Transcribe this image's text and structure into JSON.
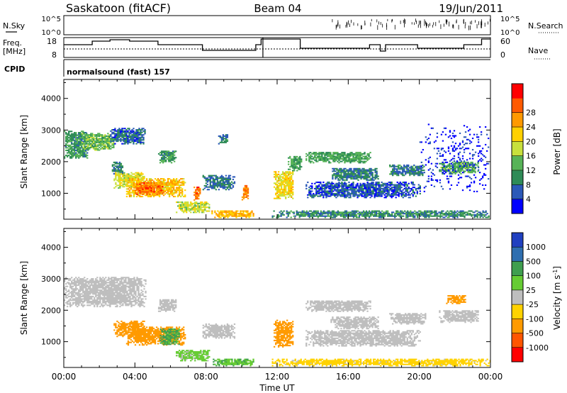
{
  "header": {
    "station": "Saskatoon (fitACF)",
    "beam": "Beam 04",
    "date": "19/Jun/2011"
  },
  "top_panels": {
    "nsky_label": "N.Sky",
    "nsky_ticks": [
      "10^5",
      "10^0"
    ],
    "nsearch_label": "N.Search",
    "nsearch_ticks": [
      "10^5",
      "10^0"
    ],
    "freq_label": "Freq.",
    "freq_unit": "[MHz]",
    "freq_ticks": [
      "18",
      "8"
    ],
    "nave_label": "Nave",
    "nave_ticks": [
      "60",
      "0"
    ],
    "cpid_label": "CPID",
    "cpid_text": "normalsound (fast) 157"
  },
  "chart_data": [
    {
      "type": "heatmap",
      "name": "power-panel",
      "ylabel": "Slant Range [km]",
      "ylim": [
        180,
        4600
      ],
      "yticks": [
        "1000",
        "2000",
        "3000",
        "4000"
      ],
      "xlim": [
        0,
        24
      ],
      "colorbar_label": "Power [dB]",
      "colorbar_ticks": [
        "4",
        "8",
        "12",
        "16",
        "20",
        "24",
        "28"
      ],
      "colorbar_colors": [
        "#0000ff",
        "#2b59b8",
        "#2e8b57",
        "#57b357",
        "#c8e03c",
        "#ffd000",
        "#ff9900",
        "#ff5a00",
        "#ff0000"
      ],
      "regions": [
        {
          "t": [
            0.0,
            1.3
          ],
          "r": [
            2100,
            2950
          ],
          "v": 11
        },
        {
          "t": [
            1.0,
            2.8
          ],
          "r": [
            2350,
            2900
          ],
          "v": 14
        },
        {
          "t": [
            2.6,
            4.6
          ],
          "r": [
            2550,
            3050
          ],
          "v": 7
        },
        {
          "t": [
            2.7,
            3.3
          ],
          "r": [
            1600,
            2000
          ],
          "v": 9
        },
        {
          "t": [
            2.8,
            4.5
          ],
          "r": [
            1150,
            1650
          ],
          "v": 19
        },
        {
          "t": [
            3.5,
            6.8
          ],
          "r": [
            880,
            1450
          ],
          "v": 23
        },
        {
          "t": [
            4.0,
            5.6
          ],
          "r": [
            950,
            1350
          ],
          "v": 29
        },
        {
          "t": [
            5.3,
            6.3
          ],
          "r": [
            1950,
            2350
          ],
          "v": 11
        },
        {
          "t": [
            6.3,
            8.2
          ],
          "r": [
            380,
            730
          ],
          "v": 18
        },
        {
          "t": [
            7.3,
            7.7
          ],
          "r": [
            730,
            1200
          ],
          "v": 29
        },
        {
          "t": [
            7.8,
            9.6
          ],
          "r": [
            1100,
            1550
          ],
          "v": 8
        },
        {
          "t": [
            8.3,
            10.7
          ],
          "r": [
            220,
            450
          ],
          "v": 24
        },
        {
          "t": [
            8.6,
            9.2
          ],
          "r": [
            2550,
            2850
          ],
          "v": 9
        },
        {
          "t": [
            10.0,
            10.4
          ],
          "r": [
            780,
            1250
          ],
          "v": 28
        },
        {
          "t": [
            11.8,
            12.9
          ],
          "r": [
            820,
            1700
          ],
          "v": 21
        },
        {
          "t": [
            12.6,
            13.4
          ],
          "r": [
            1700,
            2150
          ],
          "v": 12
        },
        {
          "t": [
            11.7,
            24.0
          ],
          "r": [
            220,
            430
          ],
          "v": 10
        },
        {
          "t": [
            13.6,
            17.2
          ],
          "r": [
            1950,
            2300
          ],
          "v": 12
        },
        {
          "t": [
            13.6,
            20.0
          ],
          "r": [
            850,
            1350
          ],
          "v": 6
        },
        {
          "t": [
            15.0,
            17.7
          ],
          "r": [
            1400,
            1800
          ],
          "v": 9
        },
        {
          "t": [
            18.3,
            20.3
          ],
          "r": [
            1550,
            1900
          ],
          "v": 9
        },
        {
          "t": [
            21.1,
            23.3
          ],
          "r": [
            1600,
            2000
          ],
          "v": 13
        },
        {
          "t": [
            20.0,
            23.9
          ],
          "r": [
            1000,
            3200
          ],
          "v": 3
        }
      ]
    },
    {
      "type": "heatmap",
      "name": "velocity-panel",
      "ylabel": "Slant Range [km]",
      "xlabel": "Time UT",
      "ylim": [
        180,
        4600
      ],
      "yticks": [
        "1000",
        "2000",
        "3000",
        "4000"
      ],
      "xlim": [
        0,
        24
      ],
      "xticks": [
        "00:00",
        "04:00",
        "08:00",
        "12:00",
        "16:00",
        "20:00",
        "00:00"
      ],
      "colorbar_label": "Velocity [m s",
      "colorbar_label_superscript": "-1",
      "colorbar_label_end": "]",
      "colorbar_ticks": [
        "1000",
        "500",
        "100",
        "25",
        "-25",
        "-100",
        "-500",
        "-1000"
      ],
      "colorbar_colors": [
        "#2040c0",
        "#2f6fb0",
        "#3f9e4f",
        "#66cc33",
        "#bebebe",
        "#ffd200",
        "#ff9a00",
        "#ff5500",
        "#ff0000"
      ],
      "regions": [
        {
          "t": [
            0.0,
            4.6
          ],
          "r": [
            2100,
            3050
          ],
          "v": 0
        },
        {
          "t": [
            2.8,
            4.5
          ],
          "r": [
            1150,
            1650
          ],
          "v": -200
        },
        {
          "t": [
            3.5,
            6.8
          ],
          "r": [
            880,
            1450
          ],
          "v": -250
        },
        {
          "t": [
            5.4,
            6.5
          ],
          "r": [
            900,
            1400
          ],
          "v": 150
        },
        {
          "t": [
            5.3,
            6.3
          ],
          "r": [
            1950,
            2350
          ],
          "v": 0
        },
        {
          "t": [
            6.3,
            8.2
          ],
          "r": [
            380,
            730
          ],
          "v": 50
        },
        {
          "t": [
            7.8,
            9.6
          ],
          "r": [
            1100,
            1550
          ],
          "v": 0
        },
        {
          "t": [
            8.3,
            10.7
          ],
          "r": [
            220,
            450
          ],
          "v": 80
        },
        {
          "t": [
            11.8,
            12.9
          ],
          "r": [
            820,
            1700
          ],
          "v": -200
        },
        {
          "t": [
            11.7,
            24.0
          ],
          "r": [
            220,
            430
          ],
          "v": -60
        },
        {
          "t": [
            13.6,
            17.2
          ],
          "r": [
            1950,
            2300
          ],
          "v": 0
        },
        {
          "t": [
            15.0,
            17.7
          ],
          "r": [
            1400,
            1800
          ],
          "v": 0
        },
        {
          "t": [
            18.3,
            20.3
          ],
          "r": [
            1550,
            1900
          ],
          "v": 0
        },
        {
          "t": [
            21.1,
            23.3
          ],
          "r": [
            1600,
            2000
          ],
          "v": 0
        },
        {
          "t": [
            21.5,
            22.6
          ],
          "r": [
            2200,
            2450
          ],
          "v": -180
        },
        {
          "t": [
            13.6,
            20.0
          ],
          "r": [
            850,
            1350
          ],
          "v": 0
        }
      ]
    }
  ]
}
